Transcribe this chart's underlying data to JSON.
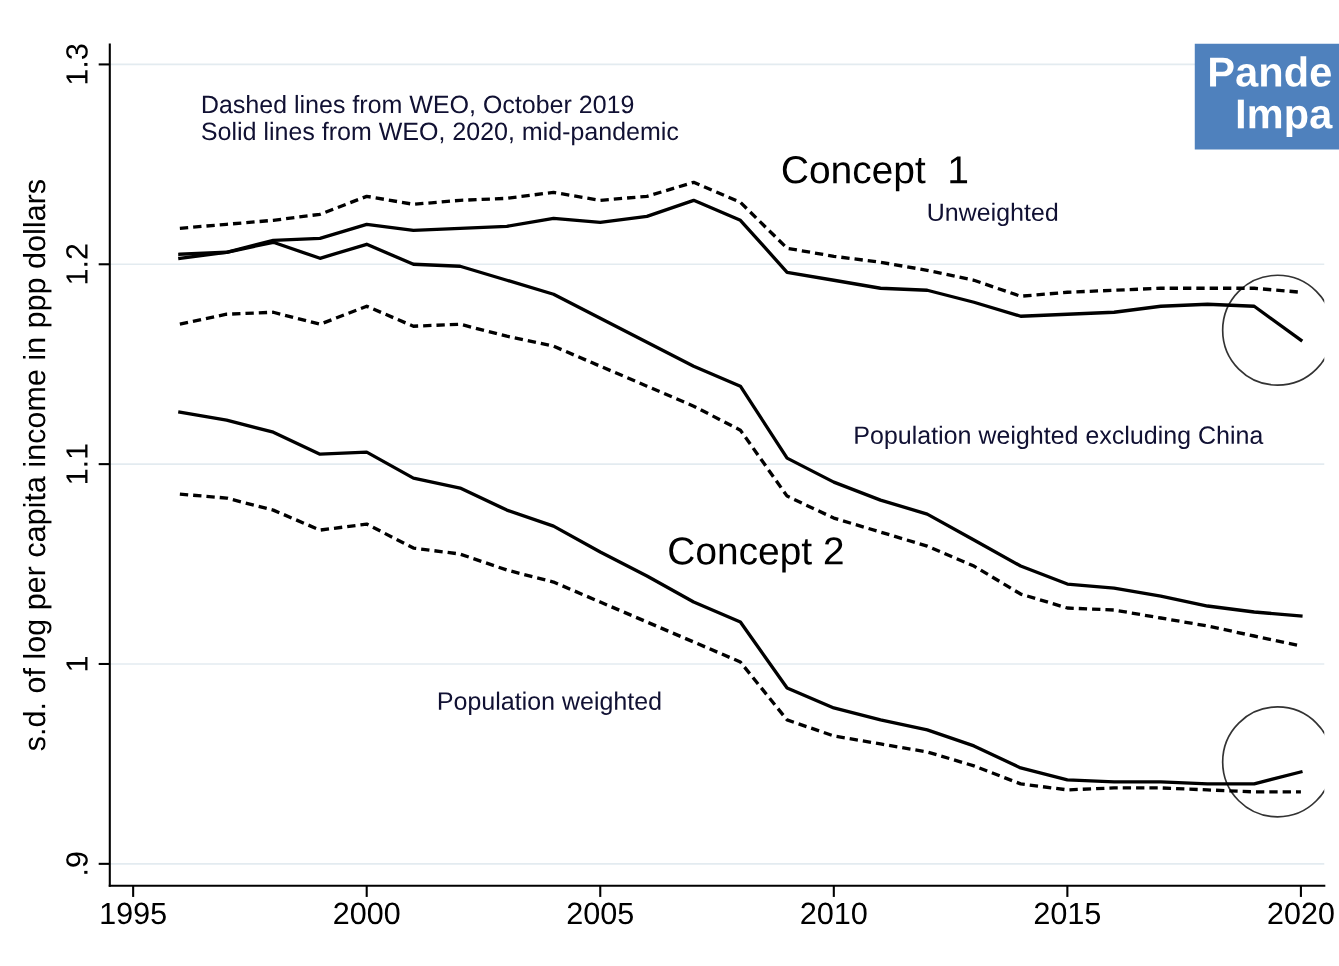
{
  "chart_data": {
    "type": "line",
    "ylabel": "s.d. of log per capita income in ppp dollars",
    "x": [
      1996,
      1997,
      1998,
      1999,
      2000,
      2001,
      2002,
      2003,
      2004,
      2005,
      2006,
      2007,
      2008,
      2009,
      2010,
      2011,
      2012,
      2013,
      2014,
      2015,
      2016,
      2017,
      2018,
      2019,
      2020
    ],
    "series": [
      {
        "color": "#000000",
        "line_style": "solid",
        "values": [
          1.205,
          1.206,
          1.212,
          1.213,
          1.22,
          1.217,
          1.218,
          1.219,
          1.223,
          1.221,
          1.224,
          1.232,
          1.222,
          1.196,
          1.192,
          1.188,
          1.187,
          1.181,
          1.174,
          1.175,
          1.176,
          1.179,
          1.18,
          1.179,
          1.162
        ]
      },
      {
        "color": "#000000",
        "line_style": "dashed",
        "values": [
          1.218,
          1.22,
          1.222,
          1.225,
          1.234,
          1.23,
          1.232,
          1.233,
          1.236,
          1.232,
          1.234,
          1.241,
          1.231,
          1.208,
          1.204,
          1.201,
          1.197,
          1.192,
          1.184,
          1.186,
          1.187,
          1.188,
          1.188,
          1.188,
          1.186
        ]
      },
      {
        "color": "#000000",
        "line_style": "solid",
        "values": [
          1.203,
          1.206,
          1.211,
          1.203,
          1.21,
          1.2,
          1.199,
          1.192,
          1.185,
          1.173,
          1.161,
          1.149,
          1.139,
          1.103,
          1.091,
          1.082,
          1.075,
          1.062,
          1.049,
          1.04,
          1.038,
          1.034,
          1.029,
          1.026,
          1.024
        ]
      },
      {
        "color": "#000000",
        "line_style": "dashed",
        "values": [
          1.17,
          1.175,
          1.176,
          1.17,
          1.179,
          1.169,
          1.17,
          1.164,
          1.159,
          1.149,
          1.139,
          1.129,
          1.117,
          1.084,
          1.073,
          1.066,
          1.059,
          1.049,
          1.035,
          1.028,
          1.027,
          1.023,
          1.019,
          1.014,
          1.009
        ]
      },
      {
        "color": "#000000",
        "line_style": "solid",
        "values": [
          1.126,
          1.122,
          1.116,
          1.105,
          1.106,
          1.093,
          1.088,
          1.077,
          1.069,
          1.056,
          1.044,
          1.031,
          1.021,
          0.988,
          0.978,
          0.972,
          0.967,
          0.959,
          0.948,
          0.942,
          0.941,
          0.941,
          0.94,
          0.94,
          0.946
        ]
      },
      {
        "color": "#000000",
        "line_style": "dashed",
        "values": [
          1.085,
          1.083,
          1.077,
          1.067,
          1.07,
          1.058,
          1.055,
          1.047,
          1.041,
          1.031,
          1.021,
          1.011,
          1.001,
          0.972,
          0.964,
          0.96,
          0.956,
          0.949,
          0.94,
          0.937,
          0.938,
          0.938,
          0.937,
          0.936,
          0.936
        ]
      }
    ],
    "xlim": [
      1994.5,
      2020.5
    ],
    "xticks": [
      1995,
      2000,
      2005,
      2010,
      2015,
      2020
    ],
    "ylim": [
      0.889,
      1.31
    ],
    "yticks": [
      {
        "value": 0.9,
        "label": ".9"
      },
      1,
      1.1,
      1.2,
      1.3
    ],
    "grid": "y",
    "annotations": [
      "Dashed lines from WEO, October 2019\nSolid lines from WEO, 2020, mid-pandemic",
      "Pande\nImpa",
      "Concept  1",
      "Unweighted",
      "Population weighted excluding China",
      "Concept 2",
      "Population weighted"
    ]
  }
}
